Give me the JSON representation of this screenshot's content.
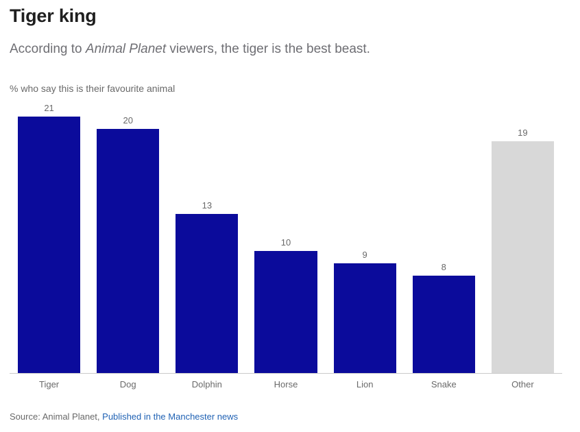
{
  "header": {
    "title": "Tiger king",
    "subtitle_prefix": "According to ",
    "subtitle_italic": "Animal Planet",
    "subtitle_suffix": " viewers, the tiger is the best beast."
  },
  "chart_data": {
    "type": "bar",
    "title": "Tiger king",
    "subtitle": "According to Animal Planet viewers, the tiger is the best beast.",
    "ylabel": "% who say this is their favourite animal",
    "xlabel": "",
    "categories": [
      "Tiger",
      "Dog",
      "Dolphin",
      "Horse",
      "Lion",
      "Snake",
      "Other"
    ],
    "values": [
      21,
      20,
      13,
      10,
      9,
      8,
      19
    ],
    "ylim": [
      0,
      21
    ],
    "grid": false,
    "legend": false,
    "value_labels": true,
    "colors": [
      "#0b0b9b",
      "#0b0b9b",
      "#0b0b9b",
      "#0b0b9b",
      "#0b0b9b",
      "#0b0b9b",
      "#d8d8d8"
    ],
    "accent_color": "#0b0b9b",
    "other_color": "#d8d8d8",
    "axis_line_color": "#c9c9c9",
    "label_color": "#696969"
  },
  "footer": {
    "source_prefix": "Source: Animal Planet,",
    "source_link": "Published in the Manchester news"
  }
}
